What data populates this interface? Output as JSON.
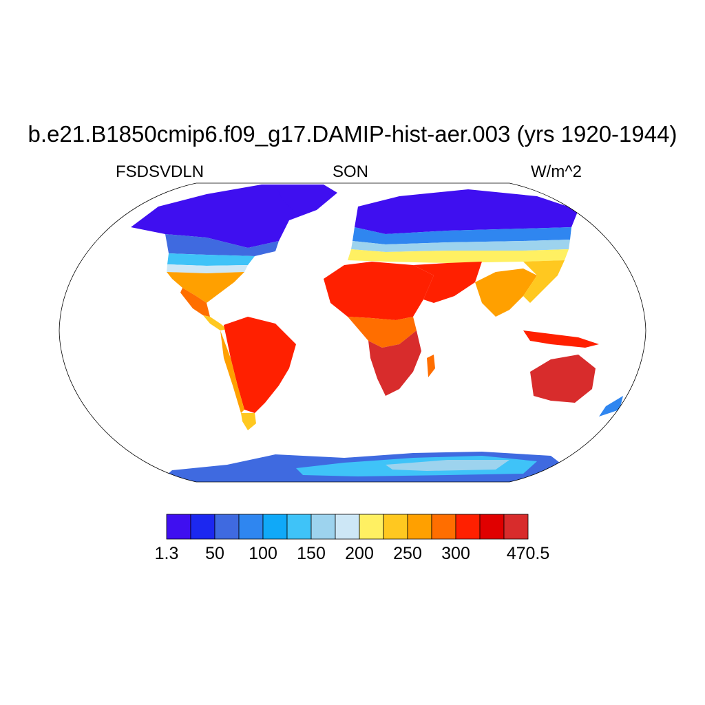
{
  "title": "b.e21.B1850cmip6.f09_g17.DAMIP-hist-aer.003 (yrs 1920-1944)",
  "left_subtitle": "FSDSVDLN",
  "center_subtitle": "SON",
  "right_subtitle": "W/m^2",
  "colorbar": {
    "colors": [
      "#3f0ff0",
      "#1c28f0",
      "#3f6ae0",
      "#2f86f0",
      "#10a9f8",
      "#3fc3f8",
      "#9dd3ee",
      "#cde7f6",
      "#fff062",
      "#ffc820",
      "#ffa000",
      "#ff6e00",
      "#ff2000",
      "#e00000",
      "#d82c2c"
    ],
    "labels": [
      {
        "text": "1.3",
        "index": 0
      },
      {
        "text": "50",
        "index": 2
      },
      {
        "text": "100",
        "index": 4
      },
      {
        "text": "150",
        "index": 6
      },
      {
        "text": "200",
        "index": 8
      },
      {
        "text": "250",
        "index": 10
      },
      {
        "text": "300",
        "index": 12
      },
      {
        "text": "470.5",
        "index": 15
      }
    ]
  },
  "map_colors": {
    "ocean": "#ffffff",
    "outline": "#000000"
  }
}
